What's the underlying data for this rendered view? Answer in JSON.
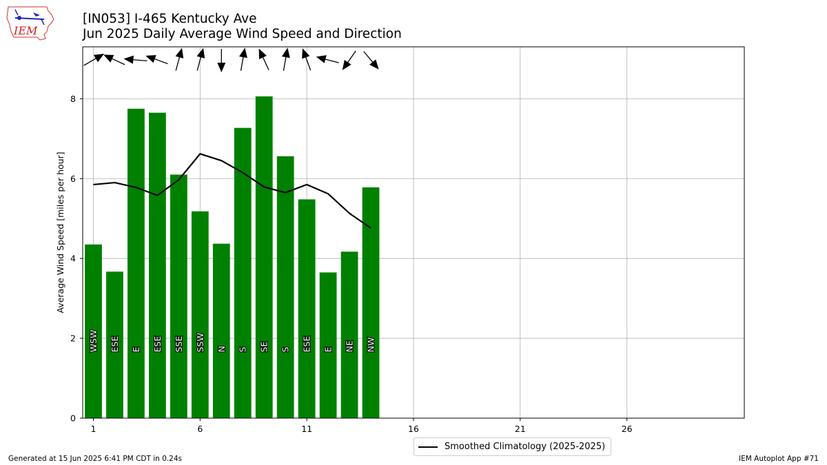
{
  "header": {
    "title": "[IN053] I-465 Kentucky Ave",
    "subtitle": "Jun 2025 Daily Average Wind Speed and Direction",
    "logo_text": "IEM"
  },
  "footer": {
    "generated": "Generated at 15 Jun 2025 6:41 PM CDT in 0.24s",
    "app": "IEM Autoplot App #71"
  },
  "legend": {
    "label": "Smoothed Climatology (2025-2025)"
  },
  "colors": {
    "bar": "#008000",
    "line": "#000000",
    "grid": "#b0b0b0",
    "arrow": "#000000"
  },
  "chart_data": {
    "type": "bar",
    "title": "[IN053] I-465 Kentucky Ave",
    "subtitle": "Jun 2025 Daily Average Wind Speed and Direction",
    "xlabel": "",
    "ylabel": "Average Wind Speed [miles per hour]",
    "xlim": [
      0.5,
      31.5
    ],
    "ylim": [
      0,
      9.3
    ],
    "xticks": [
      1,
      6,
      11,
      16,
      21,
      26
    ],
    "yticks": [
      0,
      2,
      4,
      6,
      8
    ],
    "grid": true,
    "legend_position": "bottom-center",
    "days": [
      1,
      2,
      3,
      4,
      5,
      6,
      7,
      8,
      9,
      10,
      11,
      12,
      13,
      14
    ],
    "values": [
      4.35,
      3.67,
      7.75,
      7.65,
      6.1,
      5.18,
      4.37,
      7.27,
      8.06,
      6.56,
      5.48,
      3.65,
      4.17,
      5.78
    ],
    "directions": [
      "WSW",
      "ESE",
      "E",
      "ESE",
      "SSE",
      "SSW",
      "N",
      "S",
      "SE",
      "S",
      "ESE",
      "E",
      "NE",
      "NW"
    ],
    "arrow_toward_deg": [
      60,
      295,
      275,
      290,
      15,
      15,
      180,
      10,
      335,
      10,
      340,
      285,
      215,
      140
    ],
    "series": [
      {
        "name": "Smoothed Climatology (2025-2025)",
        "x": [
          1,
          2,
          3,
          4,
          5,
          6,
          7,
          8,
          9,
          10,
          11,
          12,
          13,
          14
        ],
        "values": [
          5.85,
          5.9,
          5.78,
          5.58,
          5.97,
          6.62,
          6.45,
          6.15,
          5.79,
          5.65,
          5.85,
          5.62,
          5.13,
          4.76
        ]
      }
    ]
  }
}
